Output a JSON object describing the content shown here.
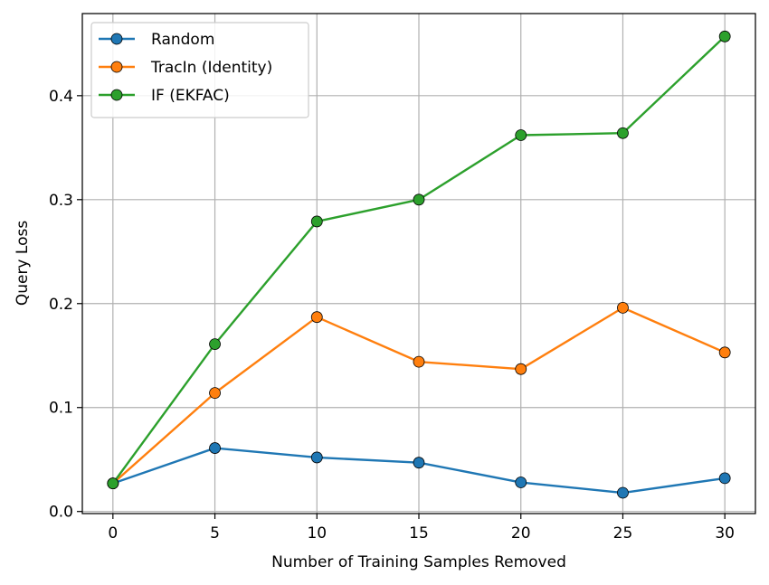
{
  "chart_data": {
    "type": "line",
    "x": [
      0,
      5,
      10,
      15,
      20,
      25,
      30
    ],
    "series": [
      {
        "name": "Random",
        "color": "#1f77b4",
        "values": [
          0.027,
          0.061,
          0.052,
          0.047,
          0.028,
          0.018,
          0.032
        ]
      },
      {
        "name": "TracIn (Identity)",
        "color": "#ff7f0e",
        "values": [
          0.027,
          0.114,
          0.187,
          0.144,
          0.137,
          0.196,
          0.153
        ]
      },
      {
        "name": "IF (EKFAC)",
        "color": "#2ca02c",
        "values": [
          0.027,
          0.161,
          0.279,
          0.3,
          0.362,
          0.364,
          0.457
        ]
      }
    ],
    "xlabel": "Number of Training Samples Removed",
    "ylabel": "Query Loss",
    "xlim": [
      -1.5,
      31.5
    ],
    "ylim": [
      -0.002,
      0.479
    ],
    "xticks": [
      0,
      5,
      10,
      15,
      20,
      25,
      30
    ],
    "xtick_labels": [
      "0",
      "5",
      "10",
      "15",
      "20",
      "25",
      "30"
    ],
    "yticks": [
      0.0,
      0.1,
      0.2,
      0.3,
      0.4
    ],
    "ytick_labels": [
      "0.0",
      "0.1",
      "0.2",
      "0.3",
      "0.4"
    ],
    "grid": true,
    "legend_position": "top-left",
    "marker": "circle"
  }
}
